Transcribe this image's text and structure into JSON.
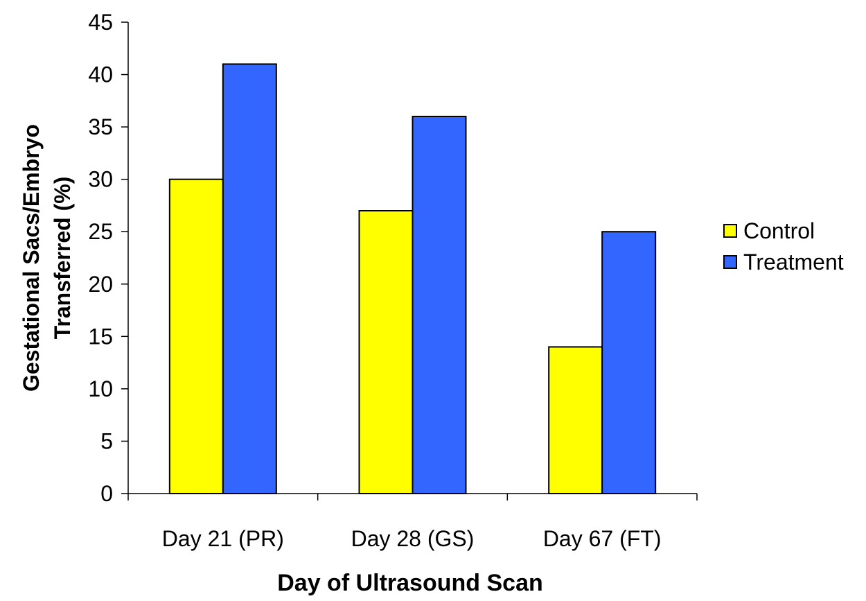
{
  "chart_data": {
    "type": "bar",
    "title": "",
    "xlabel": "Day of Ultrasound Scan",
    "ylabel": [
      "Gestational Sacs/Embryo",
      "Transferred (%)"
    ],
    "categories": [
      "Day 21 (PR)",
      "Day 28 (GS)",
      "Day 67 (FT)"
    ],
    "series": [
      {
        "name": "Control",
        "color": "#ffff00",
        "values": [
          30,
          27,
          14
        ]
      },
      {
        "name": "Treatment",
        "color": "#3366ff",
        "values": [
          41,
          36,
          25
        ]
      }
    ],
    "ylim": [
      0,
      45
    ],
    "yticks": [
      0,
      5,
      10,
      15,
      20,
      25,
      30,
      35,
      40,
      45
    ],
    "grid": false,
    "legend_position": "right"
  }
}
